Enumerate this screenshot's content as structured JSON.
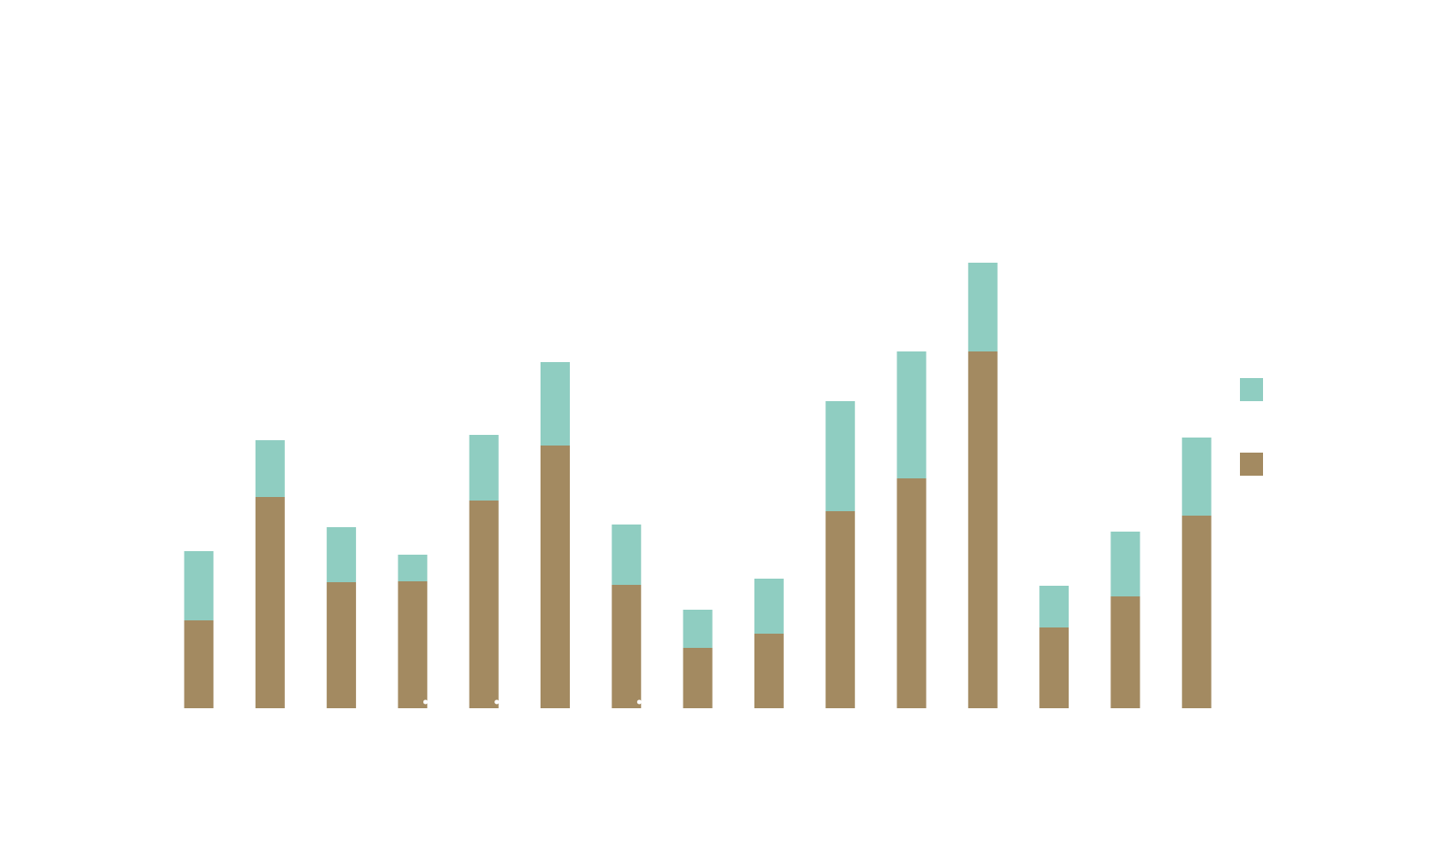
{
  "chart_data": {
    "type": "bar",
    "stacked": true,
    "categories": [
      "",
      "",
      "",
      "",
      "",
      "",
      "",
      "",
      "",
      "",
      "",
      "",
      "",
      "",
      ""
    ],
    "series": [
      {
        "color": "#a38a61",
        "values": [
          99,
          238,
          142,
          143,
          234,
          296,
          139,
          68,
          84,
          222,
          259,
          402,
          91,
          126,
          217
        ]
      },
      {
        "color": "#8fcdc1",
        "values": [
          78,
          64,
          62,
          30,
          74,
          94,
          68,
          43,
          62,
          124,
          143,
          100,
          47,
          73,
          88
        ]
      }
    ],
    "legend": {
      "placement": "right",
      "entries": [
        "",
        ""
      ]
    },
    "grid": false,
    "title": "",
    "xlabel": "",
    "ylabel": ""
  }
}
